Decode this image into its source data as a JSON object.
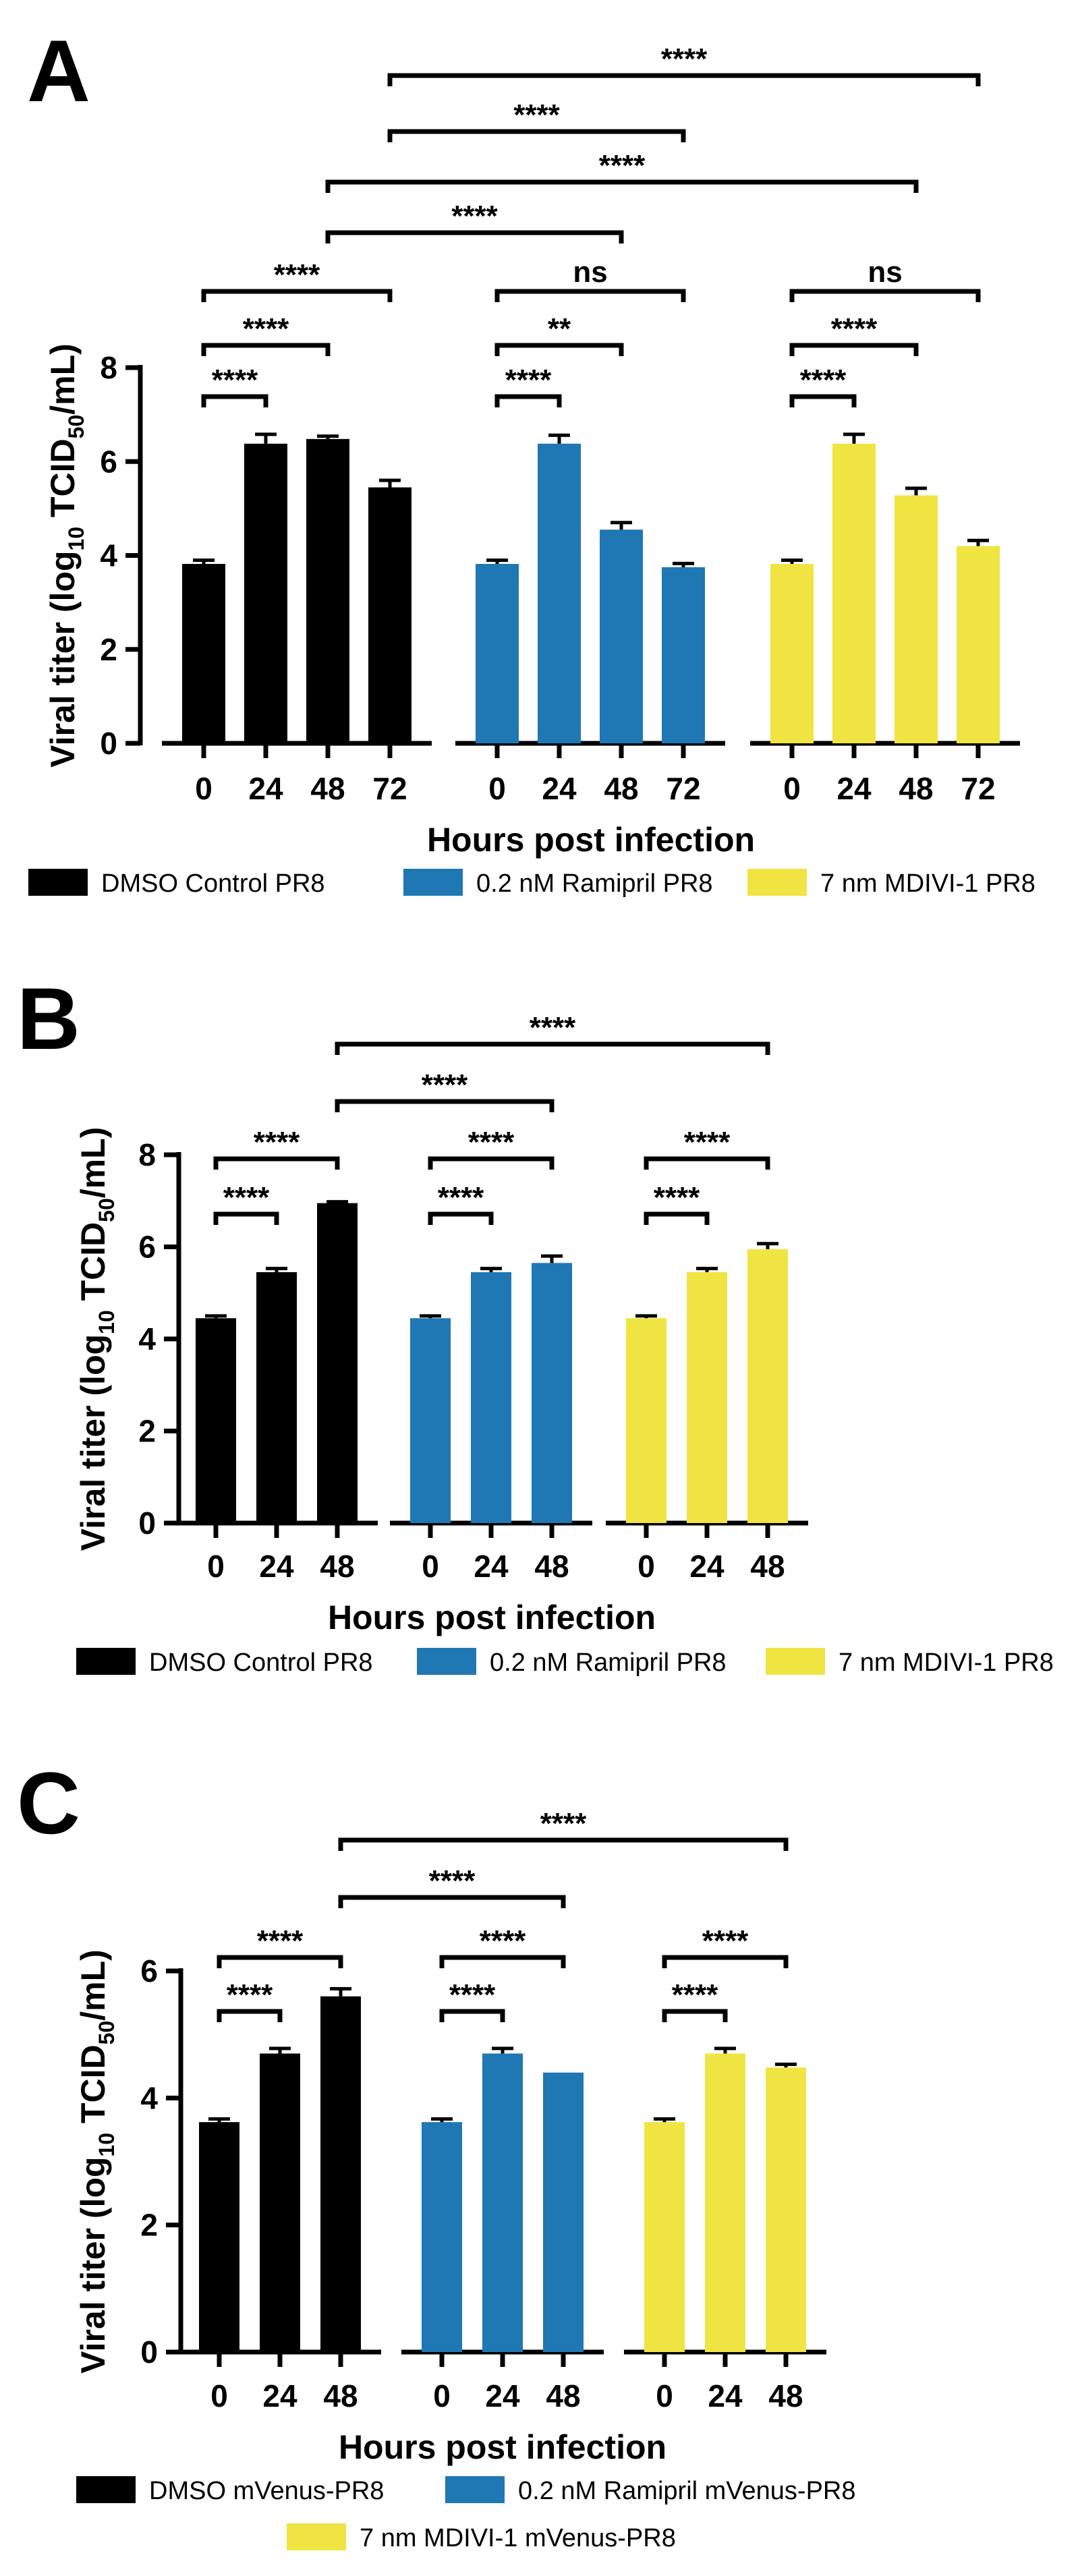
{
  "colors": {
    "black_series": "#000000",
    "blue_series": "#1f77b4",
    "yellow_series": "#f0e442"
  },
  "chart_data": [
    {
      "panel": "A",
      "type": "bar",
      "ylabel_parts": [
        "Viral titer (log",
        "10",
        " TCID",
        "50",
        "/mL)"
      ],
      "xlabel": "Hours post infection",
      "ylim": [
        0,
        8
      ],
      "yticks": [
        "0",
        "2",
        "4",
        "6",
        "8"
      ],
      "groups": [
        {
          "name": "DMSO Control PR8",
          "color": "#000000",
          "categories": [
            "0",
            "24",
            "48",
            "72"
          ],
          "values": [
            3.82,
            6.38,
            6.48,
            5.45
          ],
          "errors": [
            0.08,
            0.2,
            0.06,
            0.15
          ]
        },
        {
          "name": "0.2 nM Ramipril PR8",
          "color": "#1f77b4",
          "categories": [
            "0",
            "24",
            "48",
            "72"
          ],
          "values": [
            3.82,
            6.38,
            4.55,
            3.75
          ],
          "errors": [
            0.08,
            0.18,
            0.15,
            0.08
          ]
        },
        {
          "name": "7 nm MDIVI-1 PR8",
          "color": "#f0e442",
          "categories": [
            "0",
            "24",
            "48",
            "72"
          ],
          "values": [
            3.82,
            6.38,
            5.28,
            4.2
          ],
          "errors": [
            0.08,
            0.2,
            0.15,
            0.12
          ]
        }
      ],
      "legend": [
        "DMSO Control PR8",
        "0.2 nM Ramipril PR8",
        "7 nm MDIVI-1 PR8"
      ],
      "significance": [
        {
          "label": "****",
          "from": [
            0,
            0
          ],
          "to": [
            0,
            1
          ],
          "level": 0
        },
        {
          "label": "****",
          "from": [
            0,
            0
          ],
          "to": [
            0,
            2
          ],
          "level": 1
        },
        {
          "label": "****",
          "from": [
            0,
            0
          ],
          "to": [
            0,
            3
          ],
          "level": 2
        },
        {
          "label": "****",
          "from": [
            1,
            0
          ],
          "to": [
            1,
            1
          ],
          "level": 0
        },
        {
          "label": "**",
          "from": [
            1,
            0
          ],
          "to": [
            1,
            2
          ],
          "level": 1
        },
        {
          "label": "ns",
          "from": [
            1,
            0
          ],
          "to": [
            1,
            3
          ],
          "level": 2
        },
        {
          "label": "****",
          "from": [
            2,
            0
          ],
          "to": [
            2,
            1
          ],
          "level": 0
        },
        {
          "label": "****",
          "from": [
            2,
            0
          ],
          "to": [
            2,
            2
          ],
          "level": 1
        },
        {
          "label": "ns",
          "from": [
            2,
            0
          ],
          "to": [
            2,
            3
          ],
          "level": 2
        },
        {
          "label": "****",
          "from": [
            0,
            2
          ],
          "to": [
            1,
            2
          ],
          "level": 3
        },
        {
          "label": "****",
          "from": [
            0,
            2
          ],
          "to": [
            2,
            2
          ],
          "level": 4
        },
        {
          "label": "****",
          "from": [
            0,
            3
          ],
          "to": [
            1,
            3
          ],
          "level": 5
        },
        {
          "label": "****",
          "from": [
            0,
            3
          ],
          "to": [
            2,
            3
          ],
          "level": 6
        }
      ]
    },
    {
      "panel": "B",
      "type": "bar",
      "ylabel_parts": [
        "Viral titer (log",
        "10",
        " TCID",
        "50",
        "/mL)"
      ],
      "xlabel": "Hours post infection",
      "ylim": [
        0,
        8
      ],
      "yticks": [
        "0",
        "2",
        "4",
        "6",
        "8"
      ],
      "groups": [
        {
          "name": "DMSO Control PR8",
          "color": "#000000",
          "categories": [
            "0",
            "24",
            "48"
          ],
          "values": [
            4.45,
            5.45,
            6.95
          ],
          "errors": [
            0.05,
            0.08,
            0.03
          ]
        },
        {
          "name": "0.2 nM Ramipril PR8",
          "color": "#1f77b4",
          "categories": [
            "0",
            "24",
            "48"
          ],
          "values": [
            4.45,
            5.45,
            5.65
          ],
          "errors": [
            0.05,
            0.08,
            0.15
          ]
        },
        {
          "name": "7 nm MDIVI-1 PR8",
          "color": "#f0e442",
          "categories": [
            "0",
            "24",
            "48"
          ],
          "values": [
            4.45,
            5.45,
            5.95
          ],
          "errors": [
            0.05,
            0.08,
            0.12
          ]
        }
      ],
      "legend": [
        "DMSO Control PR8",
        "0.2 nM Ramipril PR8",
        "7 nm MDIVI-1 PR8"
      ],
      "significance": [
        {
          "label": "****",
          "from": [
            0,
            0
          ],
          "to": [
            0,
            1
          ],
          "level": 0
        },
        {
          "label": "****",
          "from": [
            0,
            0
          ],
          "to": [
            0,
            2
          ],
          "level": 1
        },
        {
          "label": "****",
          "from": [
            1,
            0
          ],
          "to": [
            1,
            1
          ],
          "level": 0
        },
        {
          "label": "****",
          "from": [
            1,
            0
          ],
          "to": [
            1,
            2
          ],
          "level": 1
        },
        {
          "label": "****",
          "from": [
            2,
            0
          ],
          "to": [
            2,
            1
          ],
          "level": 0
        },
        {
          "label": "****",
          "from": [
            2,
            0
          ],
          "to": [
            2,
            2
          ],
          "level": 1
        },
        {
          "label": "****",
          "from": [
            0,
            2
          ],
          "to": [
            1,
            2
          ],
          "level": 2
        },
        {
          "label": "****",
          "from": [
            0,
            2
          ],
          "to": [
            2,
            2
          ],
          "level": 3
        }
      ]
    },
    {
      "panel": "C",
      "type": "bar",
      "ylabel_parts": [
        "Viral titer (log",
        "10",
        " TCID",
        "50",
        "/mL)"
      ],
      "xlabel": "Hours post infection",
      "ylim": [
        0,
        6
      ],
      "yticks": [
        "0",
        "2",
        "4",
        "6"
      ],
      "groups": [
        {
          "name": "DMSO mVenus-PR8",
          "color": "#000000",
          "categories": [
            "0",
            "24",
            "48"
          ],
          "values": [
            3.62,
            4.7,
            5.6
          ],
          "errors": [
            0.05,
            0.08,
            0.12
          ]
        },
        {
          "name": "0.2 nM Ramipril mVenus-PR8",
          "color": "#1f77b4",
          "categories": [
            "0",
            "24",
            "48"
          ],
          "values": [
            3.62,
            4.7,
            4.4
          ],
          "errors": [
            0.05,
            0.08,
            0.0
          ]
        },
        {
          "name": "7 nm MDIVI-1 mVenus-PR8",
          "color": "#f0e442",
          "categories": [
            "0",
            "24",
            "48"
          ],
          "values": [
            3.62,
            4.7,
            4.48
          ],
          "errors": [
            0.05,
            0.08,
            0.05
          ]
        }
      ],
      "legend": [
        "DMSO mVenus-PR8",
        "0.2 nM Ramipril mVenus-PR8",
        "7 nm MDIVI-1 mVenus-PR8"
      ],
      "significance": [
        {
          "label": "****",
          "from": [
            0,
            0
          ],
          "to": [
            0,
            1
          ],
          "level": 0
        },
        {
          "label": "****",
          "from": [
            0,
            0
          ],
          "to": [
            0,
            2
          ],
          "level": 1
        },
        {
          "label": "****",
          "from": [
            1,
            0
          ],
          "to": [
            1,
            1
          ],
          "level": 0
        },
        {
          "label": "****",
          "from": [
            1,
            0
          ],
          "to": [
            1,
            2
          ],
          "level": 1
        },
        {
          "label": "****",
          "from": [
            2,
            0
          ],
          "to": [
            2,
            1
          ],
          "level": 0
        },
        {
          "label": "****",
          "from": [
            2,
            0
          ],
          "to": [
            2,
            2
          ],
          "level": 1
        },
        {
          "label": "****",
          "from": [
            0,
            2
          ],
          "to": [
            1,
            2
          ],
          "level": 2
        },
        {
          "label": "****",
          "from": [
            0,
            2
          ],
          "to": [
            2,
            2
          ],
          "level": 3
        }
      ]
    }
  ]
}
